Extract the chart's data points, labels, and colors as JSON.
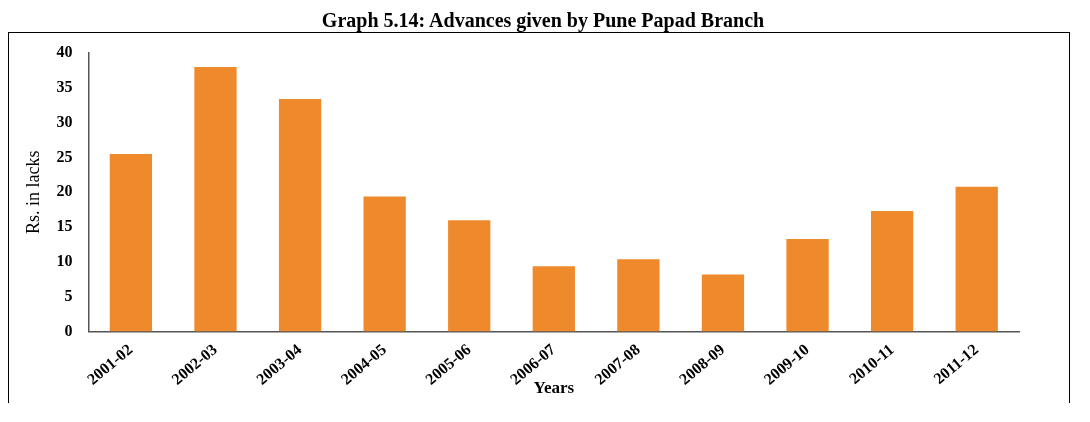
{
  "chart_data": {
    "type": "bar",
    "title": "Graph 5.14: Advances given by Pune Papad Branch",
    "xlabel": "Years",
    "ylabel": "Rs. in lacks",
    "categories": [
      "2001-02",
      "2002-03",
      "2003-04",
      "2004-05",
      "2005-06",
      "2006-07",
      "2007-08",
      "2008-09",
      "2009-10",
      "2010-11",
      "2011-12"
    ],
    "values": [
      25.5,
      38,
      33.4,
      19.4,
      16,
      9.4,
      10.4,
      8.2,
      13.3,
      17.3,
      20.8
    ],
    "color": "#ef8a2c",
    "ylim": [
      0,
      40
    ],
    "yticks": [
      0,
      5,
      10,
      15,
      20,
      25,
      30,
      35,
      40
    ],
    "grid": false,
    "legend": false
  }
}
